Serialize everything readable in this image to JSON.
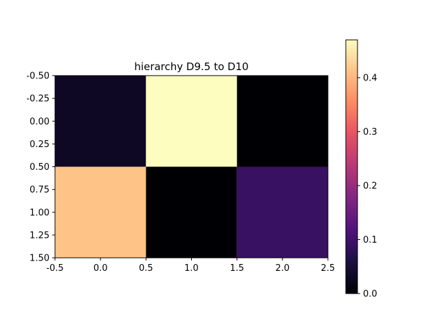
{
  "chart_data": {
    "type": "heatmap",
    "title": "hierarchy D9.5 to D10",
    "xlabel": "",
    "ylabel": "",
    "rows": [
      [
        0.03,
        0.47,
        0.0
      ],
      [
        0.41,
        0.0,
        0.09
      ]
    ],
    "xlim": [
      -0.5,
      2.5
    ],
    "ylim": [
      1.5,
      -0.5
    ],
    "x_ticks": [
      "-0.5",
      "0.0",
      "0.5",
      "1.0",
      "1.5",
      "2.0",
      "2.5"
    ],
    "y_ticks": [
      "-0.50",
      "-0.25",
      "0.00",
      "0.25",
      "0.50",
      "0.75",
      "1.00",
      "1.25",
      "1.50"
    ],
    "colormap": "magma",
    "colorbar": {
      "range": [
        0.0,
        0.47
      ],
      "ticks": [
        "0.0",
        "0.1",
        "0.2",
        "0.3",
        "0.4"
      ]
    },
    "grid": false
  }
}
